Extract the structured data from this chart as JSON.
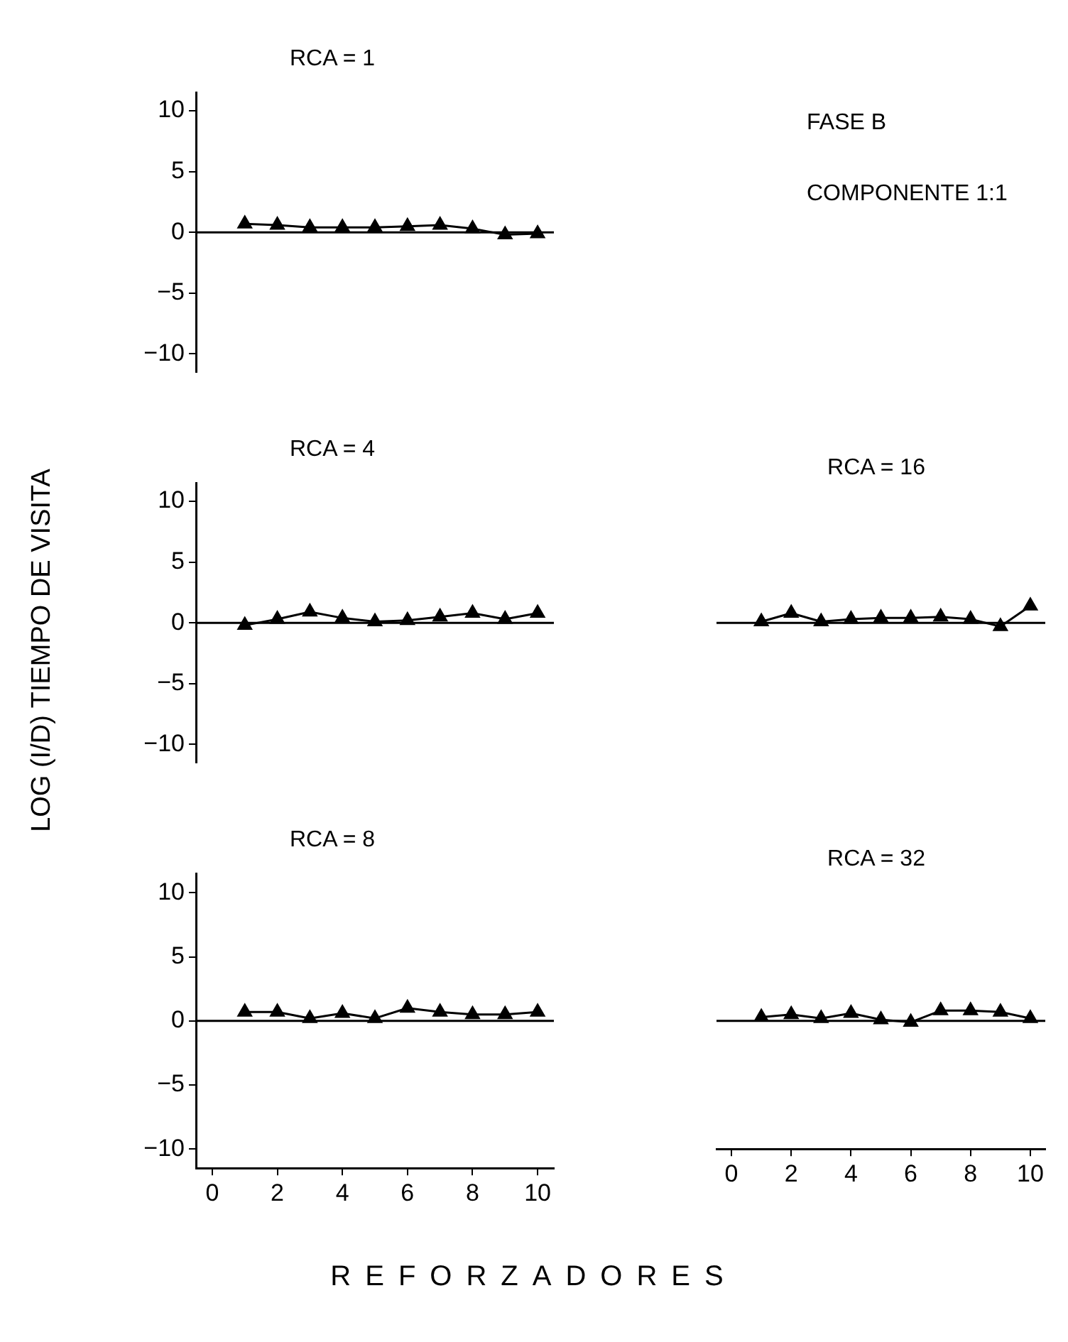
{
  "chart_data": [
    {
      "type": "line",
      "title": "RCA = 1",
      "annotations": [
        "FASE B",
        "COMPONENTE 1:1"
      ],
      "x": [
        1,
        2,
        3,
        4,
        5,
        6,
        7,
        8,
        9,
        10
      ],
      "series": [
        {
          "color": "#000000",
          "values": [
            0.7,
            0.6,
            0.4,
            0.4,
            0.4,
            0.5,
            0.6,
            0.3,
            -0.2,
            -0.1
          ]
        }
      ],
      "xlim": [
        -0.5,
        10.5
      ],
      "xticks": [
        0,
        2,
        4,
        6,
        8,
        10
      ],
      "ylim": [
        -11.5,
        11.5
      ],
      "yticks": [
        -10,
        -5,
        0,
        5,
        10
      ],
      "tick_labels": "y",
      "marker": "triangle",
      "ref_lines": [
        {
          "axis": "y",
          "value": 0
        }
      ]
    },
    {
      "type": "line",
      "title": "RCA = 4",
      "ylabel": "LOG (I/D) TIEMPO DE VISITA",
      "x": [
        1,
        2,
        3,
        4,
        5,
        6,
        7,
        8,
        9,
        10
      ],
      "series": [
        {
          "color": "#000000",
          "values": [
            -0.2,
            0.3,
            0.9,
            0.4,
            0.1,
            0.2,
            0.5,
            0.8,
            0.3,
            0.8
          ]
        }
      ],
      "xlim": [
        -0.5,
        10.5
      ],
      "xticks": [
        0,
        2,
        4,
        6,
        8,
        10
      ],
      "ylim": [
        -11.5,
        11.5
      ],
      "yticks": [
        -10,
        -5,
        0,
        5,
        10
      ],
      "tick_labels": "y",
      "marker": "triangle",
      "ref_lines": [
        {
          "axis": "y",
          "value": 0
        }
      ]
    },
    {
      "type": "line",
      "title": "RCA = 16",
      "x": [
        1,
        2,
        3,
        4,
        5,
        6,
        7,
        8,
        9,
        10
      ],
      "series": [
        {
          "color": "#000000",
          "values": [
            0.1,
            0.8,
            0.1,
            0.3,
            0.4,
            0.4,
            0.5,
            0.3,
            -0.3,
            1.4
          ]
        }
      ],
      "xlim": [
        -0.5,
        10.5
      ],
      "xticks": [
        0,
        2,
        4,
        6,
        8,
        10
      ],
      "ylim": [
        -10,
        10
      ],
      "yticks": [
        -10,
        -5,
        0,
        5,
        10
      ],
      "tick_labels": false,
      "marker": "triangle",
      "ref_lines": [
        {
          "axis": "y",
          "value": 0
        }
      ]
    },
    {
      "type": "line",
      "title": "RCA = 8",
      "xlabel": "REFORZADORES",
      "x": [
        1,
        2,
        3,
        4,
        5,
        6,
        7,
        8,
        9,
        10
      ],
      "series": [
        {
          "color": "#000000",
          "values": [
            0.7,
            0.7,
            0.2,
            0.6,
            0.2,
            1.0,
            0.7,
            0.5,
            0.5,
            0.7
          ]
        }
      ],
      "xlim": [
        -0.5,
        10.5
      ],
      "xticks": [
        0,
        2,
        4,
        6,
        8,
        10
      ],
      "ylim": [
        -11.5,
        11.5
      ],
      "yticks": [
        -10,
        -5,
        0,
        5,
        10
      ],
      "marker": "triangle",
      "ref_lines": [
        {
          "axis": "y",
          "value": 0
        }
      ]
    },
    {
      "type": "line",
      "title": "RCA = 32",
      "x": [
        1,
        2,
        3,
        4,
        5,
        6,
        7,
        8,
        9,
        10
      ],
      "series": [
        {
          "color": "#000000",
          "values": [
            0.3,
            0.5,
            0.2,
            0.6,
            0.1,
            -0.1,
            0.8,
            0.8,
            0.7,
            0.2
          ]
        }
      ],
      "xlim": [
        -0.5,
        10.5
      ],
      "xticks": [
        0,
        2,
        4,
        6,
        8,
        10
      ],
      "ylim": [
        -10,
        10
      ],
      "yticks": [
        -10,
        -5,
        0,
        5,
        10
      ],
      "tick_labels": "x",
      "marker": "triangle",
      "ref_lines": [
        {
          "axis": "y",
          "value": 0
        }
      ]
    }
  ]
}
